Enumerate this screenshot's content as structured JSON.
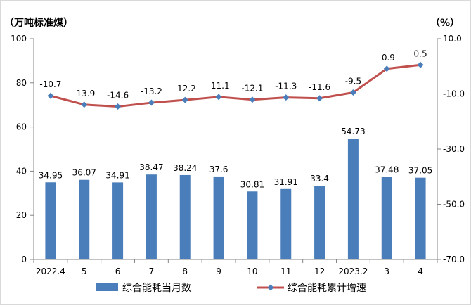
{
  "chart_data": {
    "type": "bar+line",
    "categories": [
      "2022.4",
      "5",
      "6",
      "7",
      "8",
      "9",
      "10",
      "11",
      "12",
      "2023.2",
      "3",
      "4"
    ],
    "series": [
      {
        "name": "综合能耗当月数",
        "type": "bar",
        "axis": "left",
        "color": "#4a7ebb",
        "values": [
          34.95,
          36.07,
          34.91,
          38.47,
          38.24,
          37.6,
          30.81,
          31.91,
          33.4,
          54.73,
          37.48,
          37.05
        ]
      },
      {
        "name": "综合能耗累计增速",
        "type": "line",
        "axis": "right",
        "color": "#c0504d",
        "values": [
          -10.7,
          -13.9,
          -14.6,
          -13.2,
          -12.2,
          -11.1,
          -12.1,
          -11.3,
          -11.6,
          -9.5,
          -0.9,
          0.5
        ]
      }
    ],
    "ylabel_left": "（万吨标准煤）",
    "ylabel_right": "（%）",
    "ylim_left": [
      0,
      100
    ],
    "yticks_left": [
      "0",
      "20",
      "40",
      "60",
      "80",
      "100"
    ],
    "ylim_right": [
      -70,
      10
    ],
    "yticks_right": [
      "-70.0",
      "-50.0",
      "-30.0",
      "-10.0",
      "10.0"
    ],
    "grid": false,
    "legend_position": "bottom"
  }
}
